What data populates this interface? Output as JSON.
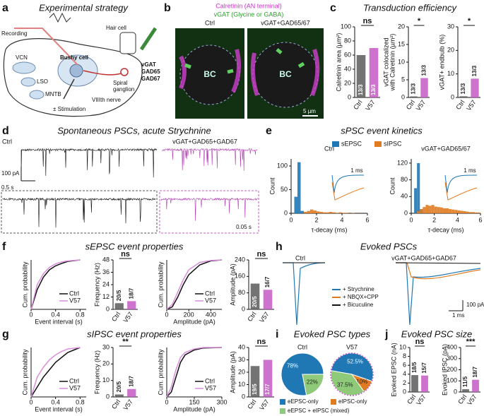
{
  "a": {
    "label": "a",
    "title": "Experimental strategy",
    "recording": "Recording",
    "hair_cell": "Hair cell",
    "markers": [
      "vGAT",
      "GAD65",
      "GAD67"
    ],
    "spiral": [
      "Spiral",
      "ganglion"
    ],
    "bushy": "Bushy cell",
    "nerve": "VIIIth nerve",
    "stim": "± Stimulation",
    "regions": [
      "VCN",
      "LSO",
      "MNTB"
    ]
  },
  "b": {
    "label": "b",
    "legend": [
      "Calretinin (AN terminal)",
      "vGAT (Glycine or GABA)"
    ],
    "conditions": [
      "Ctrl",
      "vGAT+GAD65/67"
    ],
    "cell": "BC",
    "scale": "5 µm"
  },
  "c": {
    "label": "c",
    "title": "Transduction efficiency",
    "charts": [
      {
        "type": "bar",
        "ylabel": [
          "Calretinin area (µm²)"
        ],
        "categories": [
          "Ctrl",
          "V57"
        ],
        "values": [
          60,
          70
        ],
        "colors": [
          "#5a5a5a",
          "#c45bc4"
        ],
        "n_labels": [
          "13/3",
          "13/3"
        ],
        "significance": "ns",
        "ylim": [
          0,
          100
        ],
        "yticks": [
          0,
          20,
          40,
          60,
          80,
          100
        ]
      },
      {
        "type": "bar",
        "ylabel": [
          "vGAT colocalized",
          "with Calretinin (µm²)"
        ],
        "categories": [
          "Ctrl",
          "V57"
        ],
        "values": [
          0.3,
          5.5
        ],
        "colors": [
          "#5a5a5a",
          "#c45bc4"
        ],
        "n_labels": [
          "13/3",
          "13/3"
        ],
        "significance": "*",
        "ylim": [
          0,
          20
        ],
        "yticks": [
          0,
          5,
          10,
          15,
          20
        ]
      },
      {
        "type": "bar",
        "ylabel": [
          "vGAT+ endbulb (%)"
        ],
        "categories": [
          "Ctrl",
          "V57"
        ],
        "values": [
          0.5,
          8
        ],
        "colors": [
          "#5a5a5a",
          "#c45bc4"
        ],
        "n_labels": [
          "13/3",
          "13/3"
        ],
        "significance": "*",
        "ylim": [
          0,
          30
        ],
        "yticks": [
          0,
          10,
          20,
          30
        ]
      }
    ]
  },
  "d": {
    "label": "d",
    "title": "Spontaneous PSCs, acute Strychnine",
    "conditions": [
      "Ctrl",
      "vGAT+GAD65+GAD67"
    ],
    "scales": [
      "100 pA",
      "0.5 s",
      "0.05 s"
    ]
  },
  "e": {
    "label": "e",
    "title": "sPSC event kinetics",
    "inset_scale": "1 ms",
    "charts": [
      {
        "type": "histogram",
        "title": "Ctrl",
        "xlabel": "τ-decay (ms)",
        "ylabel": "Count",
        "xlim": [
          0,
          6
        ],
        "xticks": [
          0,
          2,
          4,
          6
        ],
        "ylim": [
          0,
          115
        ],
        "yticks": [
          0,
          50,
          100
        ],
        "bins": [
          0,
          0.25,
          0.5,
          0.75,
          1,
          1.25,
          1.5,
          1.75,
          2,
          2.25,
          2.5,
          2.75,
          3,
          3.25,
          3.5,
          3.75,
          4,
          4.25,
          4.5,
          4.75,
          5,
          5.25,
          5.5,
          5.75,
          6
        ],
        "series": [
          {
            "name": "sEPSC",
            "color": "#1f77b4",
            "values": [
              0,
              35,
              108,
              5,
              0,
              0,
              0,
              0,
              0,
              0,
              0,
              0,
              0,
              0,
              0,
              0,
              0,
              0,
              0,
              0,
              0,
              0,
              0,
              0
            ]
          },
          {
            "name": "sIPSC",
            "color": "#e07b20",
            "values": [
              0,
              0,
              0,
              0,
              3,
              5,
              8,
              6,
              4,
              3,
              2,
              2,
              3,
              2,
              1,
              2,
              1,
              1,
              0,
              1,
              0,
              0,
              0,
              0
            ]
          }
        ]
      },
      {
        "type": "histogram",
        "title": "vGAT+GAD65/67",
        "xlabel": "τ-decay (ms)",
        "ylabel": "Count",
        "xlim": [
          0,
          6
        ],
        "xticks": [
          0,
          2,
          4,
          6
        ],
        "ylim": [
          0,
          130
        ],
        "yticks": [
          0,
          40,
          80,
          120
        ],
        "bins": [
          0,
          0.25,
          0.5,
          0.75,
          1,
          1.25,
          1.5,
          1.75,
          2,
          2.25,
          2.5,
          2.75,
          3,
          3.25,
          3.5,
          3.75,
          4,
          4.25,
          4.5,
          4.75,
          5,
          5.25,
          5.5,
          5.75,
          6
        ],
        "series": [
          {
            "name": "sEPSC",
            "color": "#1f77b4",
            "values": [
              0,
              60,
              120,
              10,
              0,
              0,
              0,
              0,
              0,
              0,
              0,
              0,
              0,
              0,
              0,
              0,
              0,
              0,
              0,
              0,
              0,
              0,
              0,
              0
            ]
          },
          {
            "name": "sIPSC",
            "color": "#e07b20",
            "values": [
              0,
              0,
              5,
              10,
              15,
              20,
              18,
              20,
              16,
              15,
              14,
              12,
              12,
              10,
              9,
              8,
              7,
              6,
              5,
              4,
              3,
              3,
              2,
              2
            ]
          }
        ]
      }
    ]
  },
  "f": {
    "label": "f",
    "title": "sEPSC event properties",
    "charts": [
      {
        "type": "cumulative",
        "xlabel": "Event interval (s)",
        "ylabel": "Cum. probability",
        "xlim": [
          0,
          0.9
        ],
        "xticks": [
          0,
          0.4,
          0.8
        ],
        "ylim": [
          0,
          1
        ],
        "series": [
          {
            "name": "Ctrl",
            "color": "#111111",
            "x": [
              0,
              0.05,
              0.1,
              0.2,
              0.3,
              0.4,
              0.5,
              0.6,
              0.8
            ],
            "values": [
              0,
              0.2,
              0.4,
              0.65,
              0.8,
              0.88,
              0.93,
              0.97,
              1
            ]
          },
          {
            "name": "V57",
            "color": "#d98fdb",
            "x": [
              0,
              0.05,
              0.1,
              0.2,
              0.3,
              0.4,
              0.5,
              0.6,
              0.8
            ],
            "values": [
              0,
              0.25,
              0.5,
              0.72,
              0.85,
              0.92,
              0.96,
              0.98,
              1
            ]
          }
        ]
      },
      {
        "type": "bar",
        "ylabel": [
          "Frequency (Hz)"
        ],
        "categories": [
          "Ctrl",
          "V57"
        ],
        "values": [
          6,
          8
        ],
        "colors": [
          "#5a5a5a",
          "#c45bc4"
        ],
        "n_labels": [
          "20/5",
          "18/7"
        ],
        "significance": "ns",
        "ylim": [
          0,
          48
        ],
        "yticks": [
          0,
          12,
          24,
          36,
          48
        ]
      },
      {
        "type": "cumulative",
        "xlabel": "Amplitude (pA)",
        "ylabel": "Cum. probability",
        "xlim": [
          0,
          500
        ],
        "xticks": [
          0,
          200,
          400
        ],
        "ylim": [
          0,
          1
        ],
        "series": [
          {
            "name": "Ctrl",
            "color": "#111111",
            "x": [
              0,
              50,
              100,
              150,
              200,
              300,
              400,
              500
            ],
            "values": [
              0,
              0.05,
              0.25,
              0.5,
              0.7,
              0.9,
              0.98,
              1
            ]
          },
          {
            "name": "V57",
            "color": "#d98fdb",
            "x": [
              0,
              50,
              100,
              150,
              200,
              300,
              400,
              500
            ],
            "values": [
              0,
              0.1,
              0.35,
              0.6,
              0.8,
              0.95,
              0.99,
              1
            ]
          }
        ]
      },
      {
        "type": "bar",
        "ylabel": [
          "Amplitude (pA)"
        ],
        "categories": [
          "Ctrl",
          "V57"
        ],
        "values": [
          125,
          95
        ],
        "colors": [
          "#5a5a5a",
          "#c45bc4"
        ],
        "n_labels": [
          "20/5",
          "16/7"
        ],
        "significance": "ns",
        "ylim": [
          0,
          240
        ],
        "yticks": [
          0,
          80,
          160,
          240
        ]
      }
    ]
  },
  "g": {
    "label": "g",
    "title": "sIPSC event properties",
    "charts": [
      {
        "type": "cumulative",
        "xlabel": "Event interval (s)",
        "ylabel": "Cum. probability",
        "xlim": [
          0,
          0.9
        ],
        "xticks": [
          0,
          0.4,
          0.8
        ],
        "ylim": [
          0,
          1
        ],
        "series": [
          {
            "name": "Ctrl",
            "color": "#111111",
            "x": [
              0,
              0.05,
              0.1,
              0.2,
              0.3,
              0.4,
              0.5,
              0.6,
              0.8
            ],
            "values": [
              0,
              0.1,
              0.2,
              0.4,
              0.55,
              0.7,
              0.8,
              0.9,
              1
            ]
          },
          {
            "name": "V57",
            "color": "#d98fdb",
            "x": [
              0,
              0.05,
              0.1,
              0.2,
              0.3,
              0.4,
              0.5,
              0.6,
              0.8
            ],
            "values": [
              0,
              0.2,
              0.4,
              0.6,
              0.75,
              0.85,
              0.92,
              0.97,
              1
            ]
          }
        ]
      },
      {
        "type": "bar",
        "ylabel": [
          "Frequency (Hz)"
        ],
        "categories": [
          "Ctrl",
          "V57"
        ],
        "values": [
          1.5,
          4.8
        ],
        "colors": [
          "#5a5a5a",
          "#c45bc4"
        ],
        "n_labels": [
          "20/5",
          "18/7"
        ],
        "significance": "**",
        "ylim": [
          0,
          30
        ],
        "yticks": [
          0,
          10,
          20,
          30
        ]
      },
      {
        "type": "cumulative",
        "xlabel": "Amplitude (pA)",
        "ylabel": "Cum. probability",
        "xlim": [
          0,
          300
        ],
        "xticks": [
          0,
          150,
          300
        ],
        "ylim": [
          0,
          1
        ],
        "series": [
          {
            "name": "Ctrl",
            "color": "#111111",
            "x": [
              0,
              25,
              50,
              75,
              100,
              150,
              200,
              300
            ],
            "values": [
              0,
              0.1,
              0.4,
              0.7,
              0.85,
              0.95,
              0.99,
              1
            ]
          },
          {
            "name": "V57",
            "color": "#d98fdb",
            "x": [
              0,
              25,
              50,
              75,
              100,
              150,
              200,
              300
            ],
            "values": [
              0,
              0.2,
              0.55,
              0.8,
              0.9,
              0.97,
              1,
              1
            ]
          }
        ]
      },
      {
        "type": "bar",
        "ylabel": [
          "Amplitude (pA)"
        ],
        "categories": [
          "Ctrl",
          "V57"
        ],
        "values": [
          25,
          30
        ],
        "colors": [
          "#5a5a5a",
          "#c45bc4"
        ],
        "n_labels": [
          "19/5",
          "17/7"
        ],
        "significance": "ns",
        "ylim": [
          0,
          40
        ],
        "yticks": [
          0,
          10,
          20,
          30,
          40
        ]
      }
    ]
  },
  "h": {
    "label": "h",
    "title": "Evoked PSCs",
    "conditions": [
      "Ctrl",
      "vGAT+GAD65+GAD67"
    ],
    "legend": [
      "+ Strychnine",
      "+ NBQX+CPP",
      "+ Bicuculine"
    ],
    "legend_colors": [
      "#1f77b4",
      "#e07b20",
      "#111111"
    ],
    "scales": [
      "100 pA",
      "1 ms"
    ]
  },
  "i": {
    "label": "i",
    "title": "Evoked PSC types",
    "legend": [
      {
        "name": "eEPSC-only",
        "color": "#1f77b4"
      },
      {
        "name": "eIPSC-only",
        "color": "#e07b20"
      },
      {
        "name": "eEPSC + eIPSC (mixed)",
        "color": "#8fc97a"
      }
    ],
    "charts": [
      {
        "type": "pie",
        "title": "Ctrl",
        "values": [
          78,
          22
        ],
        "value_labels": [
          "78%",
          "22%"
        ],
        "colors": [
          "#1f77b4",
          "#8fc97a"
        ]
      },
      {
        "type": "pie",
        "title": "V57",
        "values": [
          52.5,
          10,
          37.5
        ],
        "value_labels": [
          "52.5%",
          "10%",
          "37.5%"
        ],
        "colors": [
          "#1f77b4",
          "#e07b20",
          "#8fc97a"
        ]
      }
    ]
  },
  "j": {
    "label": "j",
    "title": "Evoked PSC size",
    "charts": [
      {
        "type": "bar",
        "ylabel": [
          "Evoked EPSC (nA)"
        ],
        "categories": [
          "Ctrl",
          "V57"
        ],
        "values": [
          3.8,
          3.7
        ],
        "colors": [
          "#5a5a5a",
          "#c45bc4"
        ],
        "n_labels": [
          "18/5",
          "15/7"
        ],
        "significance": "ns",
        "ylim": [
          0,
          10
        ],
        "yticks": [
          0,
          2,
          4,
          6,
          8,
          10
        ]
      },
      {
        "type": "bar",
        "ylabel": [
          "Evoked IPSC (pA)"
        ],
        "categories": [
          "Ctrl",
          "V57"
        ],
        "values": [
          25,
          110
        ],
        "colors": [
          "#5a5a5a",
          "#c45bc4"
        ],
        "n_labels": [
          "11/5",
          "18/7"
        ],
        "significance": "***",
        "ylim": [
          0,
          400
        ],
        "yticks": [
          0,
          100,
          200,
          300,
          400
        ]
      }
    ]
  }
}
